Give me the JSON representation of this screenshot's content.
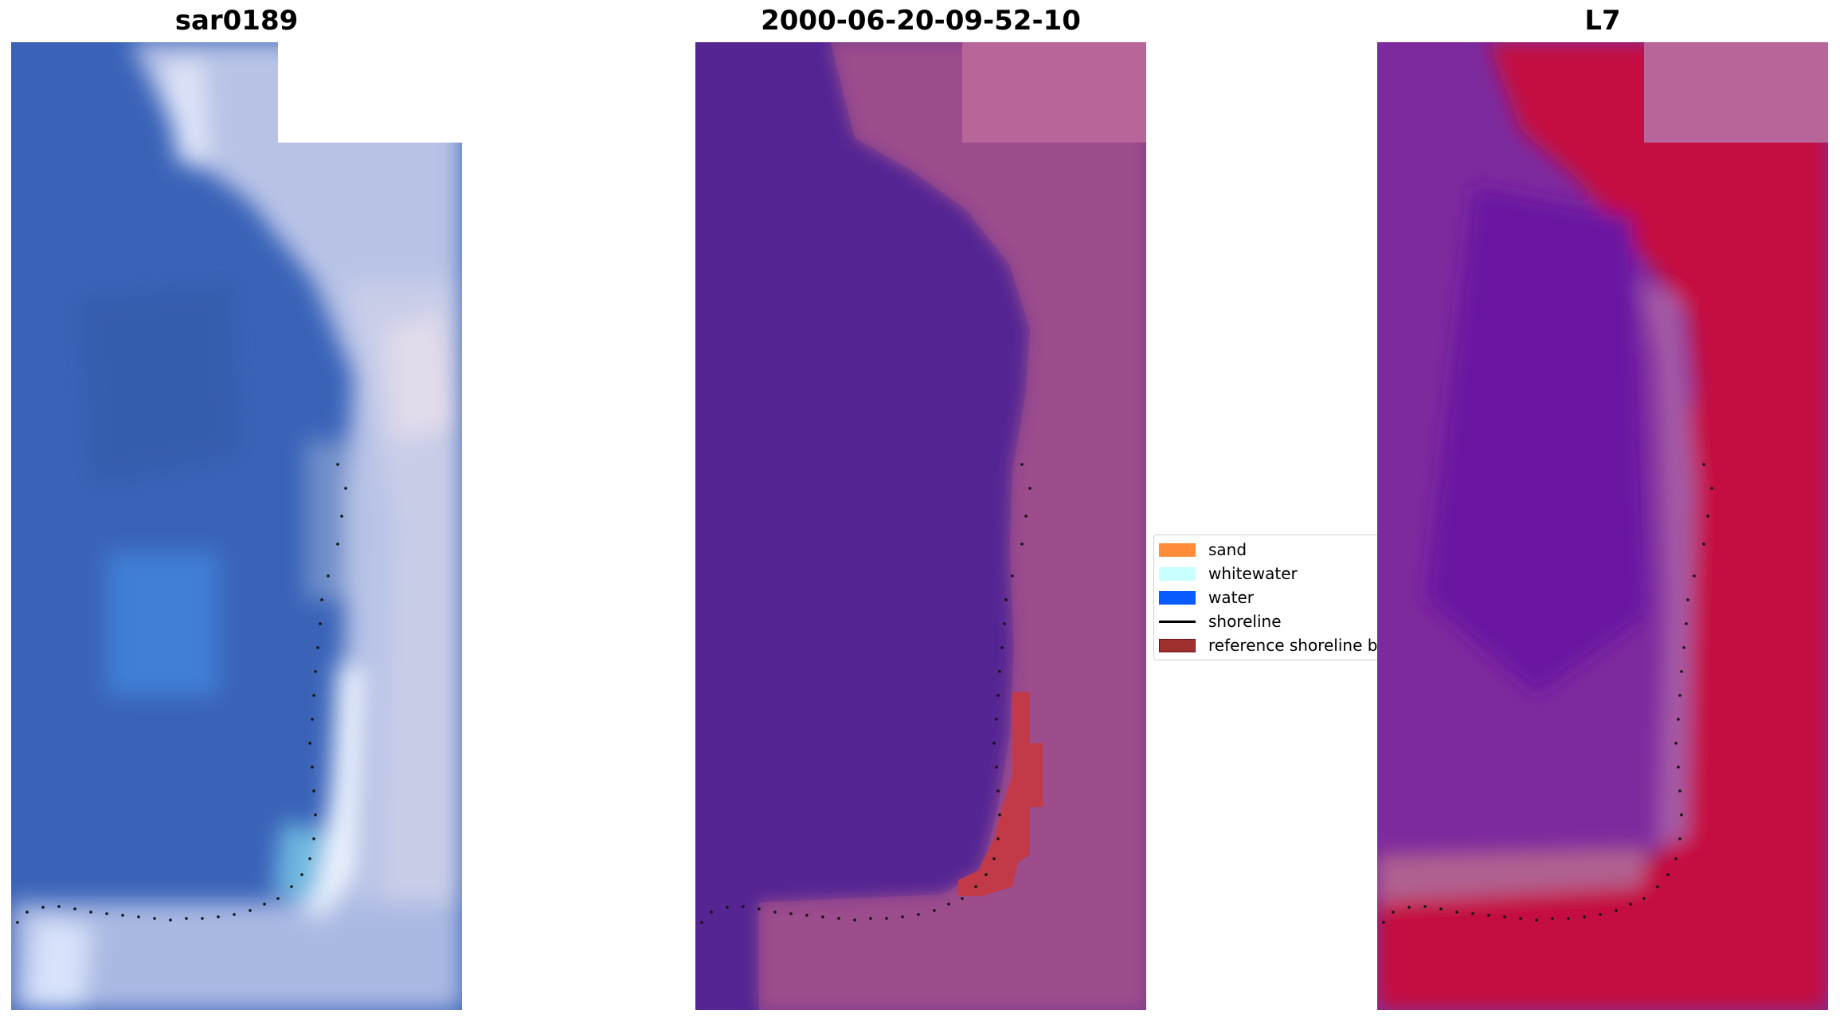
{
  "panels": [
    {
      "title": "sar0189"
    },
    {
      "title": "2000-06-20-09-52-10"
    },
    {
      "title": "L7"
    }
  ],
  "legend": {
    "items": [
      {
        "label": "sand",
        "kind": "patch",
        "color": "#ff8c3a"
      },
      {
        "label": "whitewater",
        "kind": "patch",
        "color": "#c8ffff"
      },
      {
        "label": "water",
        "kind": "patch",
        "color": "#0a5cff"
      },
      {
        "label": "shoreline",
        "kind": "line",
        "color": "#000000"
      },
      {
        "label": "reference shoreline b",
        "kind": "patch",
        "color": "#a03030"
      }
    ]
  },
  "colors": {
    "rgb_water": "#3a63b8",
    "rgb_surf": "#c8d3ee",
    "class_water": "#542593",
    "class_land": "#9e4a8c",
    "class_buffer": "#c23a48",
    "mndwi_water": "#6f1d9c",
    "mndwi_land": "#c5063c"
  }
}
